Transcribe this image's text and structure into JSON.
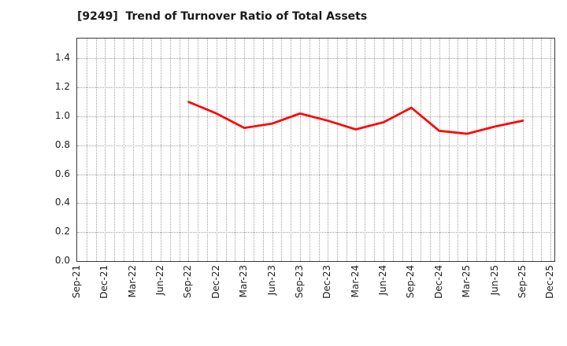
{
  "title": "[9249]  Trend of Turnover Ratio of Total Assets",
  "colors": {
    "line": "#ff0000",
    "grid": "#a0a0a0",
    "border": "#3a3a3a",
    "text": "#222222",
    "title_text": "#1a1a1a",
    "background": "#ffffff"
  },
  "y_axis": {
    "tick_labels": [
      "0.0",
      "0.2",
      "0.4",
      "0.6",
      "0.8",
      "1.0",
      "1.2",
      "1.4"
    ],
    "min": 0.0,
    "max_tick": 1.4
  },
  "x_axis": {
    "tick_labels": [
      "Sep-21",
      "Dec-21",
      "Mar-22",
      "Jun-22",
      "Sep-22",
      "Dec-22",
      "Mar-23",
      "Jun-23",
      "Sep-23",
      "Dec-23",
      "Mar-24",
      "Jun-24",
      "Sep-24",
      "Dec-24",
      "Mar-25",
      "Jun-25",
      "Sep-25",
      "Dec-25"
    ],
    "months_between_ticks": 3
  },
  "chart_data": {
    "type": "line",
    "title": "[9249]  Trend of Turnover Ratio of Total Assets",
    "xlabel": "",
    "ylabel": "",
    "ylim": [
      0,
      1.55
    ],
    "grid": true,
    "legend": false,
    "x_tick_labels": [
      "Sep-21",
      "Dec-21",
      "Mar-22",
      "Jun-22",
      "Sep-22",
      "Dec-22",
      "Mar-23",
      "Jun-23",
      "Sep-23",
      "Dec-23",
      "Mar-24",
      "Jun-24",
      "Sep-24",
      "Dec-24",
      "Mar-25",
      "Jun-25",
      "Sep-25",
      "Dec-25"
    ],
    "series": [
      {
        "name": "Turnover Ratio of Total Assets",
        "color": "#ff0000",
        "points": [
          {
            "x": "Sep-22",
            "y": 1.1
          },
          {
            "x": "Dec-22",
            "y": 1.02
          },
          {
            "x": "Mar-23",
            "y": 0.92
          },
          {
            "x": "Jun-23",
            "y": 0.95
          },
          {
            "x": "Sep-23",
            "y": 1.02
          },
          {
            "x": "Dec-23",
            "y": 0.97
          },
          {
            "x": "Mar-24",
            "y": 0.91
          },
          {
            "x": "Jun-24",
            "y": 0.96
          },
          {
            "x": "Sep-24",
            "y": 1.06
          },
          {
            "x": "Dec-24",
            "y": 0.9
          },
          {
            "x": "Mar-25",
            "y": 0.88
          },
          {
            "x": "Jun-25",
            "y": 0.93
          },
          {
            "x": "Sep-25",
            "y": 0.97
          }
        ]
      }
    ]
  }
}
